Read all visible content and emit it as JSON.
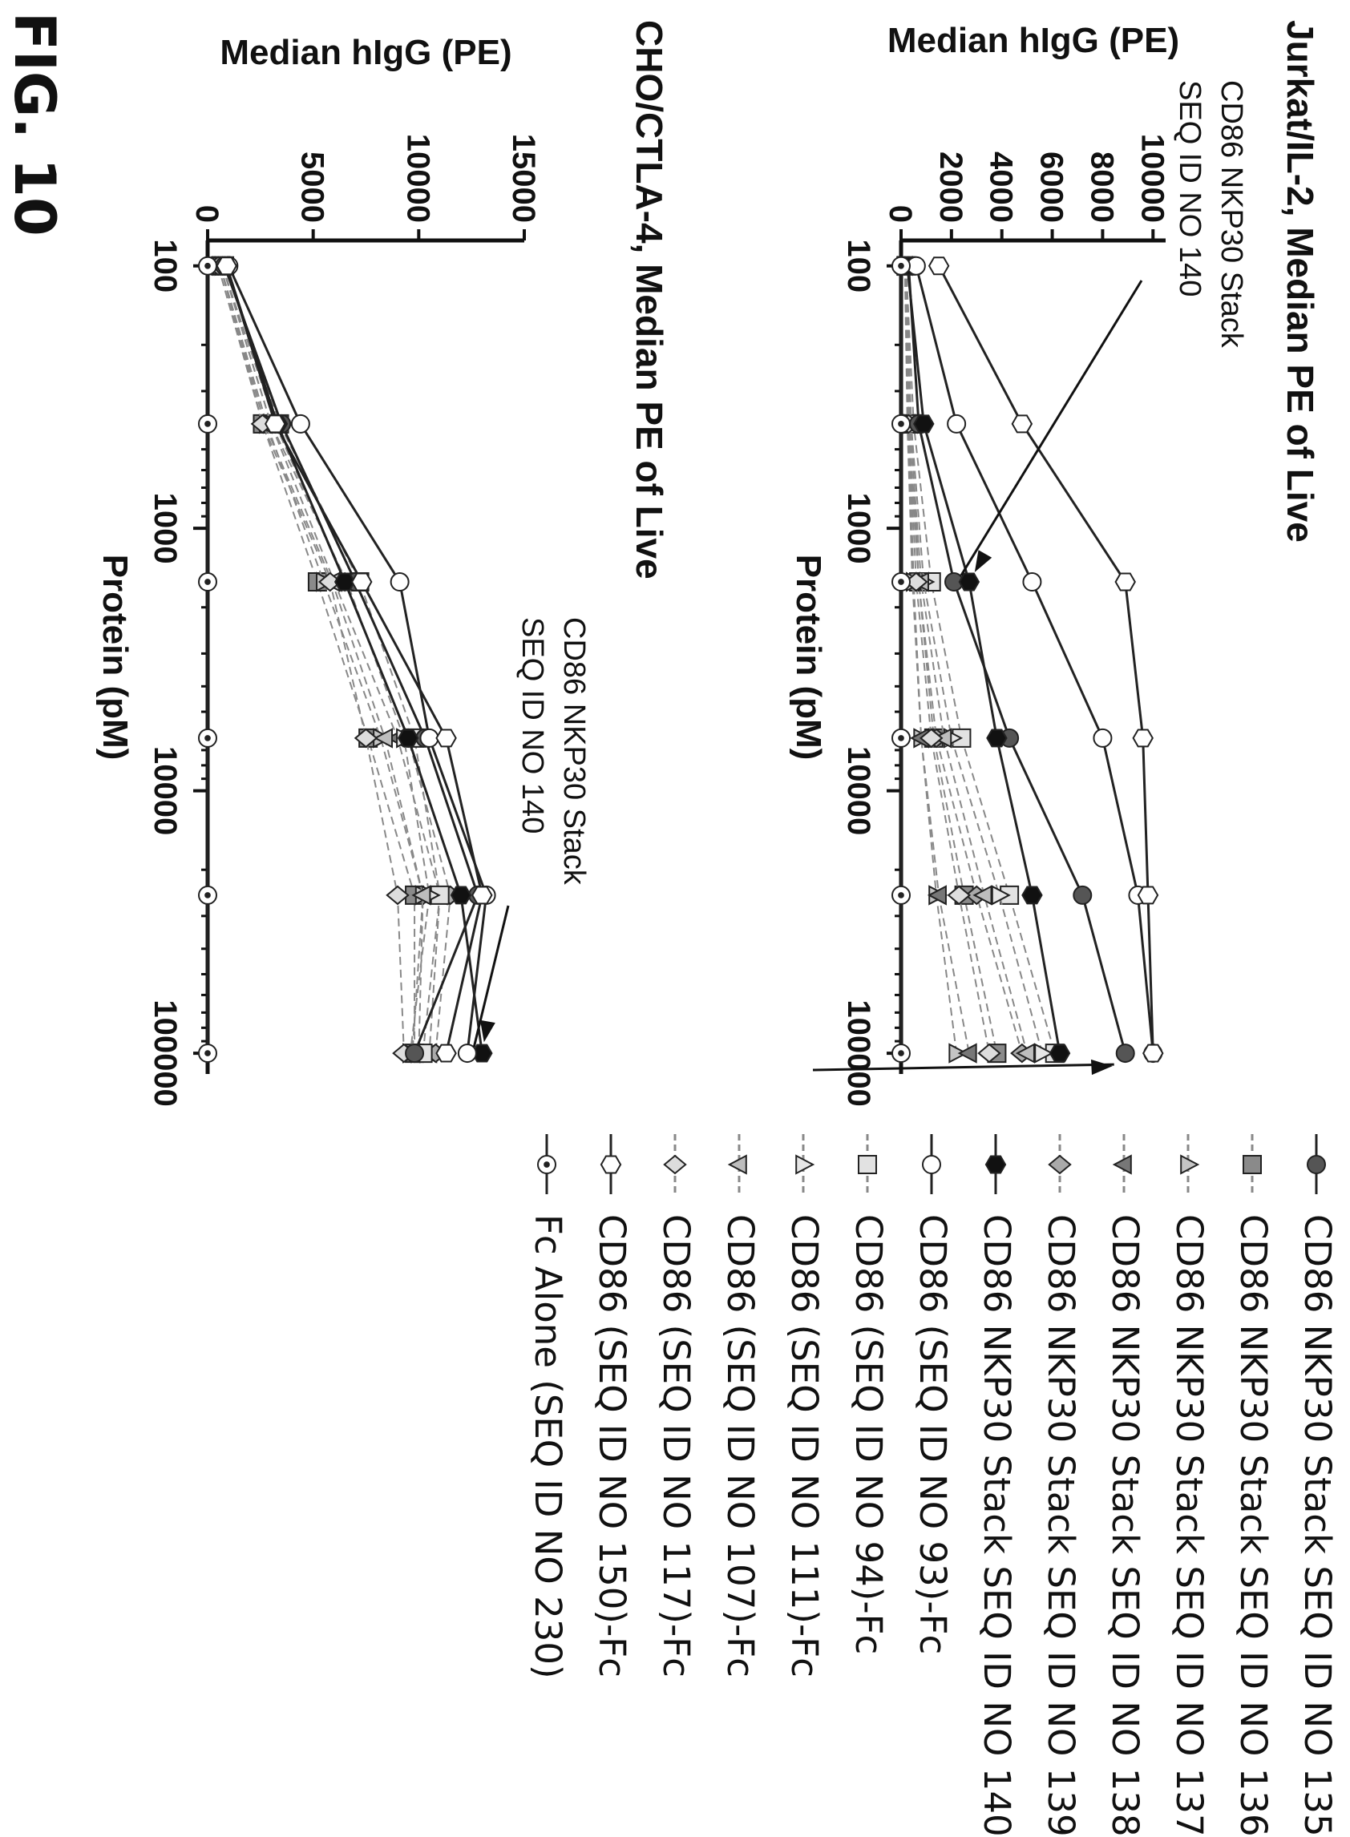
{
  "figure_label": "FIG. 10",
  "chart_data": [
    {
      "type": "line",
      "title": "Jurkat/IL-2, Median PE of Live",
      "xlabel": "Protein (pM)",
      "ylabel": "Median hIgG (PE)",
      "x_scale": "log",
      "xlim": [
        80,
        120000
      ],
      "ylim": [
        0,
        10500
      ],
      "x_ticks": [
        100,
        1000,
        10000,
        100000
      ],
      "x_tick_labels": [
        "100",
        "1000",
        "10000",
        "100000"
      ],
      "y_ticks": [
        0,
        2000,
        4000,
        6000,
        8000,
        10000
      ],
      "y_tick_labels": [
        "0",
        "2000",
        "4000",
        "6000",
        "8000",
        "10000"
      ],
      "x": [
        100,
        400,
        1600,
        6300,
        25000,
        100000
      ],
      "annotation": {
        "text_lines": [
          "CD86 NKP30 Stack",
          "SEQ ID NO 140"
        ]
      },
      "series": [
        {
          "name": "CD86 NKP30 Stack SEQ ID NO 135",
          "values": [
            300,
            700,
            2100,
            4300,
            7200,
            8900
          ]
        },
        {
          "name": "CD86 NKP30 Stack SEQ ID NO 136",
          "values": [
            200,
            400,
            700,
            1300,
            2500,
            3800
          ]
        },
        {
          "name": "CD86 NKP30 Stack SEQ ID NO 137",
          "values": [
            150,
            300,
            500,
            800,
            1400,
            2200
          ]
        },
        {
          "name": "CD86 NKP30 Stack SEQ ID NO 138",
          "values": [
            150,
            250,
            450,
            800,
            1500,
            2700
          ]
        },
        {
          "name": "CD86 NKP30 Stack SEQ ID NO 139",
          "values": [
            150,
            300,
            700,
            1400,
            3000,
            4800
          ]
        },
        {
          "name": "CD86 NKP30 Stack SEQ ID NO 140",
          "values": [
            250,
            900,
            2700,
            3800,
            5200,
            6300
          ]
        },
        {
          "name": "CD86 (SEQ ID NO 93)-Fc",
          "values": [
            600,
            2200,
            5200,
            8000,
            9400,
            10000
          ]
        },
        {
          "name": "CD86 (SEQ ID NO 94)-Fc",
          "values": [
            200,
            500,
            1200,
            2400,
            4300,
            6100
          ]
        },
        {
          "name": "CD86 (SEQ ID NO 111)-Fc",
          "values": [
            200,
            400,
            900,
            2000,
            3900,
            5600
          ]
        },
        {
          "name": "CD86 (SEQ ID NO 107)-Fc",
          "values": [
            150,
            350,
            800,
            1700,
            3300,
            5000
          ]
        },
        {
          "name": "CD86 (SEQ ID NO 117)-Fc",
          "values": [
            150,
            300,
            600,
            1200,
            2300,
            3500
          ]
        },
        {
          "name": "CD86 (SEQ ID NO 150)-Fc",
          "values": [
            1500,
            4800,
            8900,
            9600,
            9800,
            10000
          ]
        },
        {
          "name": "Fc Alone (SEQ ID NO 230)",
          "values": [
            0,
            0,
            0,
            0,
            0,
            0
          ]
        }
      ]
    },
    {
      "type": "line",
      "title": "CHO/CTLA-4, Median PE of Live",
      "xlabel": "Protein (pM)",
      "ylabel": "Median hIgG (PE)",
      "x_scale": "log",
      "xlim": [
        80,
        120000
      ],
      "ylim": [
        0,
        15000
      ],
      "x_ticks": [
        100,
        1000,
        10000,
        100000
      ],
      "x_tick_labels": [
        "100",
        "1000",
        "10000",
        "100000"
      ],
      "y_ticks": [
        0,
        5000,
        10000,
        15000
      ],
      "y_tick_labels": [
        "0",
        "5000",
        "10000",
        "15000"
      ],
      "x": [
        100,
        400,
        1600,
        6300,
        25000,
        100000
      ],
      "annotation": {
        "text_lines": [
          "CD86 NKP30 Stack",
          "SEQ ID NO 140"
        ]
      },
      "series": [
        {
          "name": "CD86 NKP30 Stack SEQ ID NO 135",
          "values": [
            800,
            3500,
            7000,
            10300,
            12800,
            9800
          ]
        },
        {
          "name": "CD86 NKP30 Stack SEQ ID NO 136",
          "values": [
            600,
            2600,
            5200,
            7600,
            9800,
            9800
          ]
        },
        {
          "name": "CD86 NKP30 Stack SEQ ID NO 137",
          "values": [
            600,
            2800,
            5500,
            8200,
            10200,
            10000
          ]
        },
        {
          "name": "CD86 NKP30 Stack SEQ ID NO 138",
          "values": [
            700,
            3000,
            6000,
            9000,
            11000,
            10500
          ]
        },
        {
          "name": "CD86 NKP30 Stack SEQ ID NO 139",
          "values": [
            700,
            3200,
            6500,
            9500,
            11500,
            10800
          ]
        },
        {
          "name": "CD86 NKP30 Stack SEQ ID NO 140",
          "values": [
            900,
            3300,
            6500,
            9500,
            12000,
            13000
          ]
        },
        {
          "name": "CD86 (SEQ ID NO 93)-Fc",
          "values": [
            1000,
            4400,
            9100,
            10500,
            13200,
            12300
          ]
        },
        {
          "name": "CD86 (SEQ ID NO 94)-Fc",
          "values": [
            800,
            3400,
            7200,
            9800,
            11000,
            10200
          ]
        },
        {
          "name": "CD86 (SEQ ID NO 111)-Fc",
          "values": [
            700,
            3000,
            6600,
            9300,
            10500,
            9600
          ]
        },
        {
          "name": "CD86 (SEQ ID NO 107)-Fc",
          "values": [
            600,
            2700,
            5900,
            8400,
            10200,
            9700
          ]
        },
        {
          "name": "CD86 (SEQ ID NO 117)-Fc",
          "values": [
            500,
            2600,
            5800,
            7500,
            9000,
            9300
          ]
        },
        {
          "name": "CD86 (SEQ ID NO 150)-Fc",
          "values": [
            900,
            3200,
            7300,
            11300,
            13000,
            11300
          ]
        },
        {
          "name": "Fc Alone (SEQ ID NO 230)",
          "values": [
            0,
            0,
            0,
            0,
            0,
            0
          ]
        }
      ]
    }
  ],
  "legend": [
    {
      "label": "CD86 NKP30 Stack SEQ ID NO 135",
      "marker": "circle",
      "fill": "#555555",
      "dash": "solid"
    },
    {
      "label": "CD86 NKP30 Stack SEQ ID NO 136",
      "marker": "square",
      "fill": "#8a8a8a",
      "dash": "dashed"
    },
    {
      "label": "CD86 NKP30 Stack SEQ ID NO 137",
      "marker": "triangle-up",
      "fill": "#c4c4c4",
      "dash": "dashed"
    },
    {
      "label": "CD86 NKP30 Stack SEQ ID NO 138",
      "marker": "triangle-down",
      "fill": "#777777",
      "dash": "dashed"
    },
    {
      "label": "CD86 NKP30 Stack SEQ ID NO 139",
      "marker": "diamond",
      "fill": "#aaaaaa",
      "dash": "dashed"
    },
    {
      "label": "CD86 NKP30 Stack SEQ ID NO 140",
      "marker": "hexagon",
      "fill": "#111111",
      "dash": "solid"
    },
    {
      "label": "CD86 (SEQ ID NO 93)-Fc",
      "marker": "circle",
      "fill": "#ffffff",
      "dash": "solid"
    },
    {
      "label": "CD86 (SEQ ID NO 94)-Fc",
      "marker": "square",
      "fill": "#e2e2e2",
      "dash": "dashed"
    },
    {
      "label": "CD86 (SEQ ID NO 111)-Fc",
      "marker": "triangle-up",
      "fill": "#e6e6e6",
      "dash": "dashed"
    },
    {
      "label": "CD86 (SEQ ID NO 107)-Fc",
      "marker": "triangle-down",
      "fill": "#bdbdbd",
      "dash": "dashed"
    },
    {
      "label": "CD86 (SEQ ID NO 117)-Fc",
      "marker": "diamond",
      "fill": "#dddddd",
      "dash": "dashed"
    },
    {
      "label": "CD86 (SEQ ID NO 150)-Fc",
      "marker": "hexagon",
      "fill": "#ffffff",
      "dash": "solid"
    },
    {
      "label": "Fc Alone (SEQ ID NO 230)",
      "marker": "circle-dot",
      "fill": "#ffffff",
      "dash": "solid"
    }
  ]
}
